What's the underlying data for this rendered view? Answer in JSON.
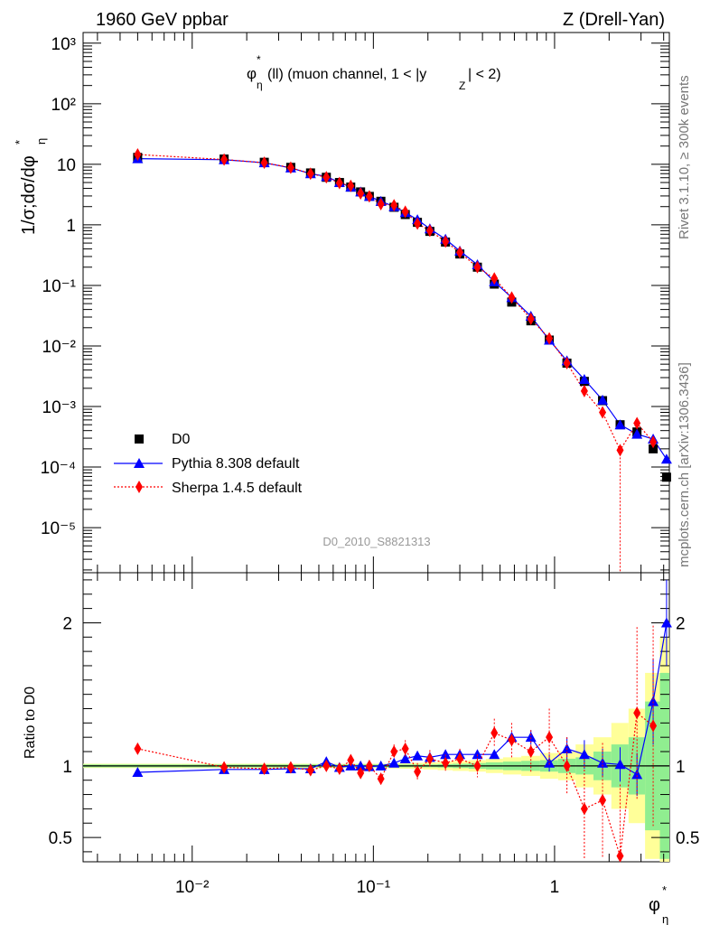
{
  "header": {
    "left": "1960 GeV ppbar",
    "right": "Z (Drell-Yan)"
  },
  "side": {
    "rivet": "Rivet 3.1.10, ≥ 300k events",
    "mcplots": "mcplots.cern.ch [arXiv:1306.3436]"
  },
  "labels": {
    "analysis": "D0_2010_S8821313",
    "ratio_ylabel": "Ratio to D0"
  },
  "chart_data": [
    {
      "type": "scatter",
      "panel": "main",
      "title": "φ*η(ll) (muon channel, 1 < |yZ| < 2)",
      "ylabel": "1/σ;dσ/dφ*η",
      "xscale": "log",
      "yscale": "log",
      "xlim": [
        0.0025,
        4.3
      ],
      "ylim": [
        1.8e-06,
        1500
      ],
      "x_ticks": [
        {
          "value": 0.01,
          "label": "10⁻²"
        },
        {
          "value": 0.1,
          "label": "10⁻¹"
        },
        {
          "value": 1,
          "label": "1"
        }
      ],
      "y_ticks": [
        {
          "value": 1e-05,
          "label": "10⁻⁵"
        },
        {
          "value": 0.0001,
          "label": "10⁻⁴"
        },
        {
          "value": 0.001,
          "label": "10⁻³"
        },
        {
          "value": 0.01,
          "label": "10⁻²"
        },
        {
          "value": 0.1,
          "label": "10⁻¹"
        },
        {
          "value": 1,
          "label": "1"
        },
        {
          "value": 10,
          "label": "10"
        },
        {
          "value": 100,
          "label": "10²"
        },
        {
          "value": 1000,
          "label": "10³"
        }
      ],
      "legend": [
        "D0",
        "Pythia 8.308 default",
        "Sherpa 1.4.5 default"
      ],
      "legend_position": "bottom-left",
      "x": [
        0.005,
        0.015,
        0.025,
        0.035,
        0.045,
        0.055,
        0.065,
        0.075,
        0.085,
        0.095,
        0.11,
        0.13,
        0.15,
        0.175,
        0.205,
        0.25,
        0.3,
        0.375,
        0.465,
        0.58,
        0.74,
        0.935,
        1.17,
        1.46,
        1.84,
        2.3,
        2.85,
        3.5,
        4.15
      ],
      "series": [
        {
          "name": "D0",
          "marker": "square",
          "color": "#000000",
          "values": [
            13.0,
            12.2,
            10.8,
            8.9,
            7.2,
            6.1,
            5.0,
            4.2,
            3.5,
            2.95,
            2.45,
            1.95,
            1.48,
            1.1,
            0.78,
            0.52,
            0.33,
            0.2,
            0.105,
            0.053,
            0.026,
            0.0125,
            0.0052,
            0.0026,
            0.00125,
            0.0005,
            0.00038,
            0.0002,
            6.8e-05
          ]
        },
        {
          "name": "Pythia 8.308 default",
          "marker": "triangle",
          "color": "#0000ff",
          "line": "solid",
          "values": [
            12.4,
            11.9,
            10.6,
            8.7,
            7.0,
            6.3,
            5.0,
            4.2,
            3.5,
            2.95,
            2.45,
            2.0,
            1.6,
            1.22,
            0.86,
            0.58,
            0.37,
            0.22,
            0.115,
            0.063,
            0.031,
            0.0125,
            0.0057,
            0.0028,
            0.00128,
            0.0005,
            0.00035,
            0.00029,
            0.000135
          ]
        },
        {
          "name": "Sherpa 1.4.5 default",
          "marker": "diamond",
          "color": "#ff0000",
          "line": "dotted",
          "values": [
            14.5,
            12.0,
            10.6,
            8.8,
            7.0,
            6.1,
            4.9,
            4.4,
            3.3,
            2.95,
            2.2,
            2.1,
            1.65,
            1.05,
            0.8,
            0.53,
            0.35,
            0.2,
            0.13,
            0.063,
            0.028,
            0.0133,
            0.0052,
            0.0018,
            0.0008,
            0.00019,
            0.00053,
            0.00026,
            null
          ]
        }
      ]
    },
    {
      "type": "scatter",
      "panel": "ratio",
      "ylabel": "Ratio to D0",
      "xlabel": "φ*η",
      "xscale": "log",
      "xlim": [
        0.0025,
        4.3
      ],
      "ylim": [
        0.33,
        2.35
      ],
      "y_ticks": [
        {
          "value": 0.5,
          "label": "0.5"
        },
        {
          "value": 1,
          "label": "1"
        },
        {
          "value": 2,
          "label": "2"
        }
      ],
      "x": [
        0.005,
        0.015,
        0.025,
        0.035,
        0.045,
        0.055,
        0.065,
        0.075,
        0.085,
        0.095,
        0.11,
        0.13,
        0.15,
        0.175,
        0.205,
        0.25,
        0.3,
        0.375,
        0.465,
        0.58,
        0.74,
        0.935,
        1.17,
        1.46,
        1.84,
        2.3,
        2.85,
        3.5,
        4.15
      ],
      "band_1sigma": [
        0.01,
        0.01,
        0.01,
        0.01,
        0.01,
        0.01,
        0.01,
        0.01,
        0.01,
        0.01,
        0.01,
        0.01,
        0.01,
        0.01,
        0.01,
        0.012,
        0.015,
        0.02,
        0.025,
        0.03,
        0.035,
        0.04,
        0.05,
        0.06,
        0.1,
        0.15,
        0.2,
        0.45,
        0.65
      ],
      "band_2sigma": [
        0.015,
        0.015,
        0.015,
        0.015,
        0.015,
        0.015,
        0.015,
        0.015,
        0.015,
        0.015,
        0.015,
        0.018,
        0.02,
        0.022,
        0.025,
        0.03,
        0.035,
        0.04,
        0.05,
        0.06,
        0.07,
        0.09,
        0.1,
        0.15,
        0.2,
        0.3,
        0.4,
        0.65,
        0.9
      ],
      "series": [
        {
          "name": "Pythia 8.308 default",
          "color": "#0000ff",
          "values": [
            0.955,
            0.975,
            0.975,
            0.98,
            0.98,
            1.03,
            0.99,
            1.0,
            1.0,
            0.995,
            1.0,
            1.02,
            1.05,
            1.07,
            1.06,
            1.08,
            1.08,
            1.08,
            1.08,
            1.2,
            1.2,
            1.02,
            1.12,
            1.08,
            1.02,
            1.01,
            0.94,
            1.45,
            2.0
          ],
          "err": [
            0,
            0,
            0,
            0,
            0,
            0,
            0,
            0,
            0,
            0,
            0,
            0,
            0,
            0,
            0,
            0,
            0,
            0,
            0.02,
            0.03,
            0.05,
            0.06,
            0.08,
            0.1,
            0.1,
            0.12,
            0.15,
            0.3,
            0.3
          ]
        },
        {
          "name": "Sherpa 1.4.5 default",
          "color": "#ff0000",
          "values": [
            1.12,
            0.99,
            0.98,
            0.99,
            0.97,
            1.0,
            0.98,
            1.04,
            0.95,
            1.0,
            0.91,
            1.1,
            1.12,
            0.96,
            1.05,
            1.02,
            1.05,
            1.0,
            1.23,
            1.18,
            1.1,
            1.2,
            1.0,
            0.7,
            0.76,
            0.37,
            1.37,
            1.28,
            null
          ],
          "err": [
            0.01,
            0.01,
            0.01,
            0.015,
            0.02,
            0.02,
            0.02,
            0.03,
            0.03,
            0.04,
            0.04,
            0.05,
            0.06,
            0.06,
            0.06,
            0.06,
            0.07,
            0.08,
            0.1,
            0.12,
            0.15,
            0.2,
            0.2,
            0.35,
            0.4,
            0.5,
            0.6,
            0.7,
            0
          ]
        }
      ]
    }
  ]
}
